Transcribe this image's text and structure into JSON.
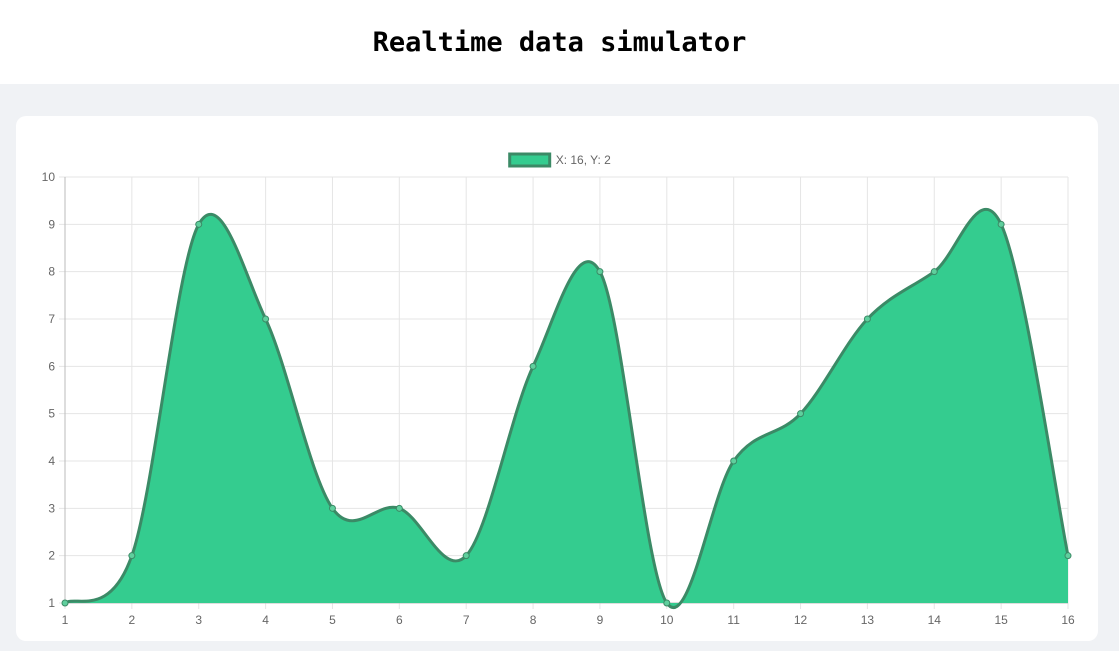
{
  "header": {
    "title": "Realtime data simulator"
  },
  "chart_data": {
    "type": "area",
    "title": "",
    "xlabel": "",
    "ylabel": "",
    "x": [
      1,
      2,
      3,
      4,
      5,
      6,
      7,
      8,
      9,
      10,
      11,
      12,
      13,
      14,
      15,
      16
    ],
    "series": [
      {
        "name": "X: 16, Y: 2",
        "values": [
          1,
          2,
          9,
          7,
          3,
          3,
          2,
          6,
          8,
          1,
          4,
          5,
          7,
          8,
          9,
          2
        ],
        "fill_color": "#34cc8f",
        "line_color": "#3b8a66"
      }
    ],
    "xlim": [
      1,
      16
    ],
    "ylim": [
      1,
      10
    ],
    "y_ticks": [
      1,
      2,
      3,
      4,
      5,
      6,
      7,
      8,
      9,
      10
    ],
    "grid": true,
    "legend_position": "top-center",
    "curve": "smooth"
  },
  "colors": {
    "fill": "#34cc8f",
    "line": "#3b8a66",
    "grid": "#e5e5e5",
    "axis": "#666666",
    "page_background": "#f0f2f5"
  }
}
